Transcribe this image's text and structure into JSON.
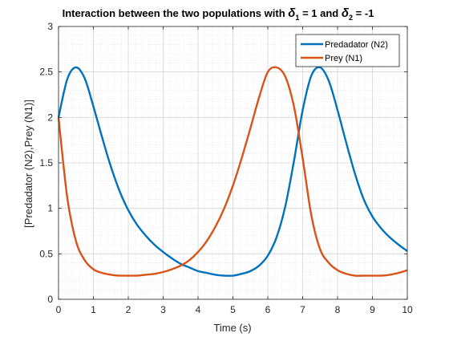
{
  "chart_data": {
    "type": "line",
    "title_prefix": "Interaction between the two populations with",
    "title_delta": "δ",
    "title_sub1": "1",
    "title_mid": "= 1 and",
    "title_sub2": "2",
    "title_end": "= -1",
    "xlabel": "Time (s)",
    "ylabel": "[Predadator (N2),Prey (N1)]",
    "xlim": [
      0,
      10
    ],
    "ylim": [
      0,
      3
    ],
    "xticks": [
      "0",
      "1",
      "2",
      "3",
      "4",
      "5",
      "6",
      "7",
      "8",
      "9",
      "10"
    ],
    "yticks": [
      "0",
      "0.5",
      "1",
      "1.5",
      "2",
      "2.5",
      "3"
    ],
    "grid": true,
    "minor_grid": true,
    "legend_position": "top-right",
    "x": [
      0,
      0.25,
      0.5,
      0.75,
      1.0,
      1.25,
      1.5,
      1.75,
      2.0,
      2.25,
      2.5,
      2.75,
      3.0,
      3.25,
      3.5,
      3.75,
      4.0,
      4.25,
      4.5,
      4.75,
      5.0,
      5.25,
      5.5,
      5.75,
      6.0,
      6.25,
      6.5,
      6.75,
      7.0,
      7.25,
      7.5,
      7.75,
      8.0,
      8.25,
      8.5,
      8.75,
      9.0,
      9.25,
      9.5,
      9.75,
      10.0
    ],
    "series": [
      {
        "name": "Predadator (N2)",
        "color": "#0072BD",
        "values": [
          2.0,
          2.42,
          2.55,
          2.43,
          2.12,
          1.78,
          1.46,
          1.19,
          0.98,
          0.82,
          0.7,
          0.6,
          0.52,
          0.45,
          0.39,
          0.35,
          0.31,
          0.29,
          0.27,
          0.26,
          0.26,
          0.28,
          0.31,
          0.37,
          0.48,
          0.68,
          1.02,
          1.52,
          2.08,
          2.46,
          2.55,
          2.4,
          2.08,
          1.72,
          1.38,
          1.1,
          0.91,
          0.78,
          0.68,
          0.6,
          0.53
        ]
      },
      {
        "name": "Prey (N1)",
        "color": "#D95319",
        "values": [
          2.0,
          1.12,
          0.64,
          0.43,
          0.33,
          0.29,
          0.27,
          0.26,
          0.26,
          0.26,
          0.27,
          0.28,
          0.3,
          0.33,
          0.37,
          0.43,
          0.52,
          0.64,
          0.8,
          1.0,
          1.25,
          1.55,
          1.88,
          2.22,
          2.5,
          2.55,
          2.45,
          2.12,
          1.55,
          0.92,
          0.55,
          0.4,
          0.32,
          0.28,
          0.26,
          0.26,
          0.26,
          0.26,
          0.27,
          0.29,
          0.32
        ]
      }
    ]
  }
}
